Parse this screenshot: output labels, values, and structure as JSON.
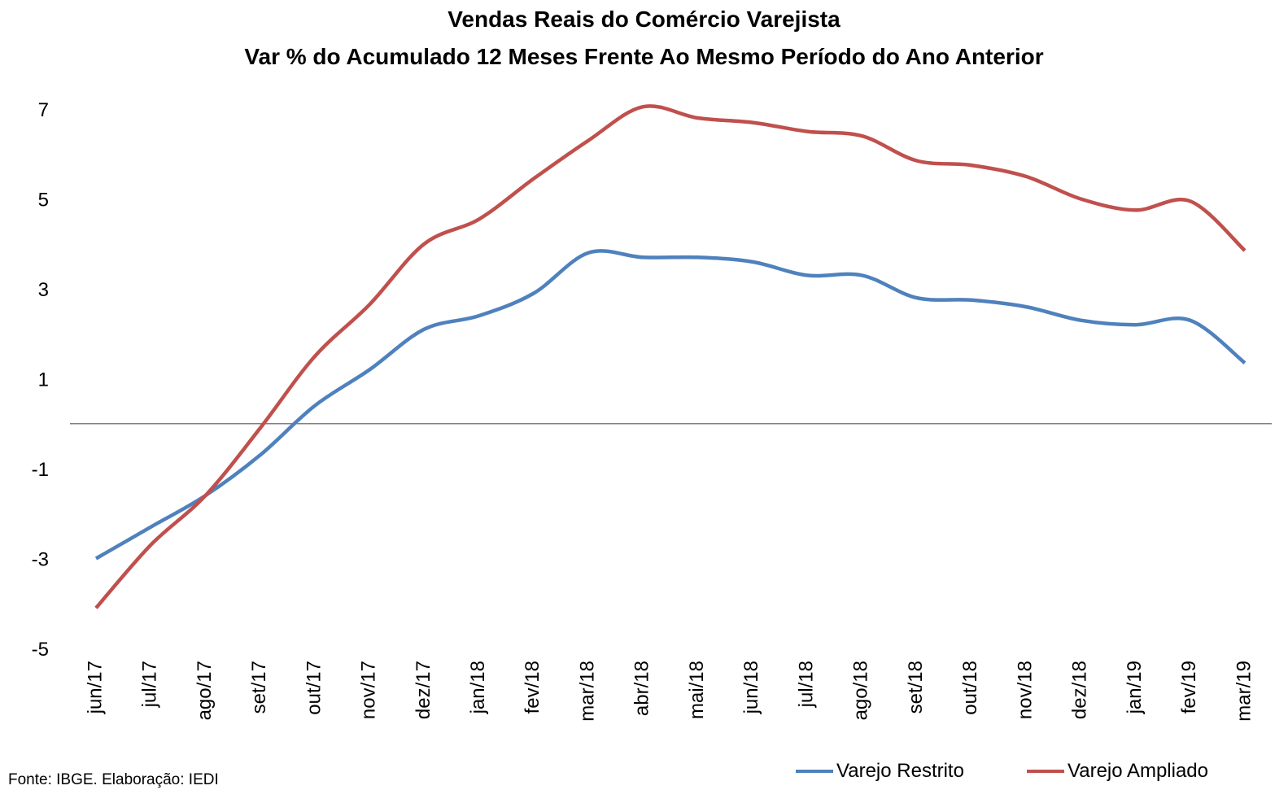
{
  "chart_data": {
    "type": "line",
    "title": "Vendas Reais do Comércio Varejista",
    "subtitle": "Var % do Acumulado 12 Meses Frente Ao Mesmo Período do Ano Anterior",
    "categories": [
      "jun/17",
      "jul/17",
      "ago/17",
      "set/17",
      "out/17",
      "nov/17",
      "dez/17",
      "jan/18",
      "fev/18",
      "mar/18",
      "abr/18",
      "mai/18",
      "jun/18",
      "jul/18",
      "ago/18",
      "set/18",
      "out/18",
      "nov/18",
      "dez/18",
      "jan/19",
      "fev/19",
      "mar/19"
    ],
    "yticks": [
      -5,
      -3,
      -1,
      1,
      3,
      5,
      7
    ],
    "ylim": [
      -5,
      7
    ],
    "series": [
      {
        "name": "Varejo Restrito",
        "color": "#4F81BD",
        "values": [
          -3.0,
          -2.3,
          -1.6,
          -0.7,
          0.4,
          1.2,
          2.1,
          2.4,
          2.9,
          3.8,
          3.7,
          3.7,
          3.6,
          3.3,
          3.3,
          2.8,
          2.75,
          2.6,
          2.3,
          2.2,
          2.3,
          1.35
        ]
      },
      {
        "name": "Varejo Ampliado",
        "color": "#C0504D",
        "values": [
          -4.1,
          -2.7,
          -1.6,
          -0.1,
          1.5,
          2.65,
          4.0,
          4.55,
          5.45,
          6.3,
          7.05,
          6.8,
          6.7,
          6.5,
          6.4,
          5.85,
          5.75,
          5.5,
          5.0,
          4.75,
          4.95,
          3.85
        ]
      }
    ],
    "grid": false,
    "legend": "bottom-right"
  },
  "source": "Fonte: IBGE. Elaboração: IEDI"
}
